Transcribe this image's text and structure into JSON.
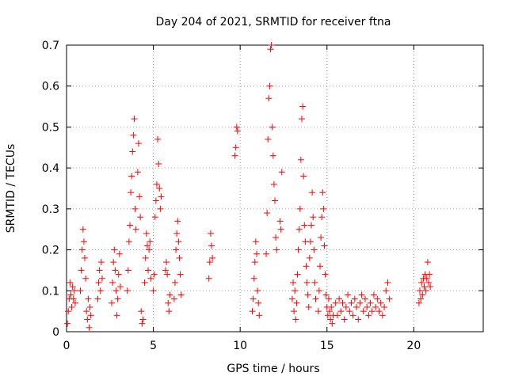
{
  "chart_data": {
    "type": "scatter",
    "title": "Day 204 of 2021, SRMTID for receiver ftna",
    "xlabel": "GPS time / hours",
    "ylabel": "SRMTID / TECUs",
    "xlim": [
      0,
      24
    ],
    "ylim": [
      0,
      0.7
    ],
    "xticks": [
      0,
      5,
      10,
      15,
      20
    ],
    "yticks": [
      0,
      0.1,
      0.2,
      0.3,
      0.4,
      0.5,
      0.6,
      0.7
    ],
    "grid": true,
    "marker": "+",
    "color": "#ff0000",
    "series": [
      {
        "name": "SRMTID",
        "points": [
          [
            0.05,
            0.02
          ],
          [
            0.1,
            0.05
          ],
          [
            0.15,
            0.08
          ],
          [
            0.2,
            0.12
          ],
          [
            0.25,
            0.09
          ],
          [
            0.3,
            0.06
          ],
          [
            0.35,
            0.11
          ],
          [
            0.4,
            0.08
          ],
          [
            0.45,
            0.1
          ],
          [
            0.5,
            0.07
          ],
          [
            0.8,
            0.1
          ],
          [
            0.85,
            0.15
          ],
          [
            0.9,
            0.2
          ],
          [
            0.95,
            0.25
          ],
          [
            1.0,
            0.22
          ],
          [
            1.05,
            0.18
          ],
          [
            1.1,
            0.13
          ],
          [
            1.15,
            0.05
          ],
          [
            1.2,
            0.03
          ],
          [
            1.25,
            0.08
          ],
          [
            1.3,
            0.01
          ],
          [
            1.35,
            0.06
          ],
          [
            1.4,
            0.04
          ],
          [
            1.8,
            0.08
          ],
          [
            1.85,
            0.12
          ],
          [
            1.9,
            0.15
          ],
          [
            1.95,
            0.1
          ],
          [
            2.0,
            0.17
          ],
          [
            2.05,
            0.13
          ],
          [
            2.6,
            0.07
          ],
          [
            2.65,
            0.12
          ],
          [
            2.7,
            0.17
          ],
          [
            2.75,
            0.2
          ],
          [
            2.8,
            0.15
          ],
          [
            2.85,
            0.1
          ],
          [
            2.9,
            0.04
          ],
          [
            2.95,
            0.08
          ],
          [
            3.0,
            0.14
          ],
          [
            3.05,
            0.19
          ],
          [
            3.1,
            0.11
          ],
          [
            3.5,
            0.1
          ],
          [
            3.55,
            0.15
          ],
          [
            3.6,
            0.22
          ],
          [
            3.65,
            0.26
          ],
          [
            3.7,
            0.34
          ],
          [
            3.75,
            0.38
          ],
          [
            3.8,
            0.44
          ],
          [
            3.85,
            0.48
          ],
          [
            3.9,
            0.52
          ],
          [
            3.95,
            0.3
          ],
          [
            4.0,
            0.25
          ],
          [
            4.1,
            0.39
          ],
          [
            4.15,
            0.46
          ],
          [
            4.2,
            0.33
          ],
          [
            4.25,
            0.28
          ],
          [
            4.3,
            0.05
          ],
          [
            4.35,
            0.02
          ],
          [
            4.4,
            0.03
          ],
          [
            4.5,
            0.12
          ],
          [
            4.55,
            0.18
          ],
          [
            4.6,
            0.24
          ],
          [
            4.65,
            0.21
          ],
          [
            4.7,
            0.15
          ],
          [
            4.75,
            0.2
          ],
          [
            4.8,
            0.22
          ],
          [
            4.85,
            0.13
          ],
          [
            5.0,
            0.1
          ],
          [
            5.05,
            0.14
          ],
          [
            5.1,
            0.28
          ],
          [
            5.15,
            0.32
          ],
          [
            5.2,
            0.36
          ],
          [
            5.25,
            0.47
          ],
          [
            5.3,
            0.41
          ],
          [
            5.35,
            0.35
          ],
          [
            5.4,
            0.3
          ],
          [
            5.45,
            0.33
          ],
          [
            5.7,
            0.15
          ],
          [
            5.75,
            0.17
          ],
          [
            5.8,
            0.14
          ],
          [
            5.85,
            0.07
          ],
          [
            5.9,
            0.05
          ],
          [
            5.95,
            0.09
          ],
          [
            6.2,
            0.08
          ],
          [
            6.25,
            0.12
          ],
          [
            6.3,
            0.2
          ],
          [
            6.35,
            0.24
          ],
          [
            6.4,
            0.27
          ],
          [
            6.45,
            0.22
          ],
          [
            6.5,
            0.18
          ],
          [
            6.55,
            0.14
          ],
          [
            6.6,
            0.09
          ],
          [
            8.2,
            0.13
          ],
          [
            8.25,
            0.17
          ],
          [
            8.3,
            0.24
          ],
          [
            8.35,
            0.21
          ],
          [
            8.4,
            0.18
          ],
          [
            9.7,
            0.43
          ],
          [
            9.75,
            0.45
          ],
          [
            9.8,
            0.5
          ],
          [
            9.85,
            0.49
          ],
          [
            10.7,
            0.05
          ],
          [
            10.75,
            0.08
          ],
          [
            10.8,
            0.13
          ],
          [
            10.85,
            0.17
          ],
          [
            10.9,
            0.22
          ],
          [
            10.95,
            0.19
          ],
          [
            11.0,
            0.1
          ],
          [
            11.05,
            0.07
          ],
          [
            11.1,
            0.04
          ],
          [
            11.5,
            0.19
          ],
          [
            11.55,
            0.29
          ],
          [
            11.6,
            0.47
          ],
          [
            11.65,
            0.57
          ],
          [
            11.7,
            0.6
          ],
          [
            11.75,
            0.69
          ],
          [
            11.8,
            0.7
          ],
          [
            11.85,
            0.5
          ],
          [
            11.9,
            0.43
          ],
          [
            11.95,
            0.36
          ],
          [
            12.0,
            0.32
          ],
          [
            12.05,
            0.23
          ],
          [
            12.1,
            0.2
          ],
          [
            12.3,
            0.27
          ],
          [
            12.35,
            0.25
          ],
          [
            12.4,
            0.39
          ],
          [
            13.0,
            0.08
          ],
          [
            13.05,
            0.12
          ],
          [
            13.1,
            0.05
          ],
          [
            13.15,
            0.1
          ],
          [
            13.2,
            0.03
          ],
          [
            13.25,
            0.07
          ],
          [
            13.3,
            0.14
          ],
          [
            13.35,
            0.2
          ],
          [
            13.4,
            0.25
          ],
          [
            13.45,
            0.3
          ],
          [
            13.5,
            0.42
          ],
          [
            13.55,
            0.52
          ],
          [
            13.6,
            0.55
          ],
          [
            13.65,
            0.38
          ],
          [
            13.7,
            0.26
          ],
          [
            13.75,
            0.22
          ],
          [
            13.8,
            0.16
          ],
          [
            13.85,
            0.12
          ],
          [
            13.9,
            0.09
          ],
          [
            13.95,
            0.06
          ],
          [
            14.0,
            0.18
          ],
          [
            14.05,
            0.22
          ],
          [
            14.1,
            0.26
          ],
          [
            14.15,
            0.34
          ],
          [
            14.2,
            0.28
          ],
          [
            14.25,
            0.2
          ],
          [
            14.3,
            0.12
          ],
          [
            14.35,
            0.08
          ],
          [
            14.5,
            0.05
          ],
          [
            14.55,
            0.1
          ],
          [
            14.6,
            0.16
          ],
          [
            14.65,
            0.23
          ],
          [
            14.7,
            0.28
          ],
          [
            14.75,
            0.34
          ],
          [
            14.8,
            0.3
          ],
          [
            14.85,
            0.21
          ],
          [
            14.9,
            0.14
          ],
          [
            14.95,
            0.09
          ],
          [
            15.0,
            0.06
          ],
          [
            15.05,
            0.04
          ],
          [
            15.1,
            0.08
          ],
          [
            15.15,
            0.05
          ],
          [
            15.2,
            0.03
          ],
          [
            15.25,
            0.06
          ],
          [
            15.3,
            0.02
          ],
          [
            15.35,
            0.04
          ],
          [
            15.5,
            0.07
          ],
          [
            15.6,
            0.04
          ],
          [
            15.7,
            0.08
          ],
          [
            15.8,
            0.05
          ],
          [
            15.9,
            0.07
          ],
          [
            16.0,
            0.03
          ],
          [
            16.1,
            0.06
          ],
          [
            16.2,
            0.09
          ],
          [
            16.3,
            0.05
          ],
          [
            16.4,
            0.07
          ],
          [
            16.5,
            0.04
          ],
          [
            16.6,
            0.08
          ],
          [
            16.7,
            0.06
          ],
          [
            16.8,
            0.03
          ],
          [
            16.9,
            0.07
          ],
          [
            17.0,
            0.09
          ],
          [
            17.1,
            0.05
          ],
          [
            17.2,
            0.08
          ],
          [
            17.3,
            0.06
          ],
          [
            17.4,
            0.04
          ],
          [
            17.5,
            0.07
          ],
          [
            17.6,
            0.05
          ],
          [
            17.7,
            0.09
          ],
          [
            17.8,
            0.06
          ],
          [
            17.9,
            0.08
          ],
          [
            18.0,
            0.05
          ],
          [
            18.1,
            0.07
          ],
          [
            18.2,
            0.04
          ],
          [
            18.3,
            0.06
          ],
          [
            18.4,
            0.1
          ],
          [
            18.5,
            0.12
          ],
          [
            18.6,
            0.08
          ],
          [
            20.3,
            0.07
          ],
          [
            20.35,
            0.1
          ],
          [
            20.4,
            0.08
          ],
          [
            20.45,
            0.12
          ],
          [
            20.5,
            0.09
          ],
          [
            20.55,
            0.13
          ],
          [
            20.6,
            0.11
          ],
          [
            20.65,
            0.14
          ],
          [
            20.7,
            0.1
          ],
          [
            20.75,
            0.13
          ],
          [
            20.8,
            0.17
          ],
          [
            20.85,
            0.12
          ],
          [
            20.9,
            0.14
          ],
          [
            20.95,
            0.11
          ]
        ]
      }
    ]
  }
}
